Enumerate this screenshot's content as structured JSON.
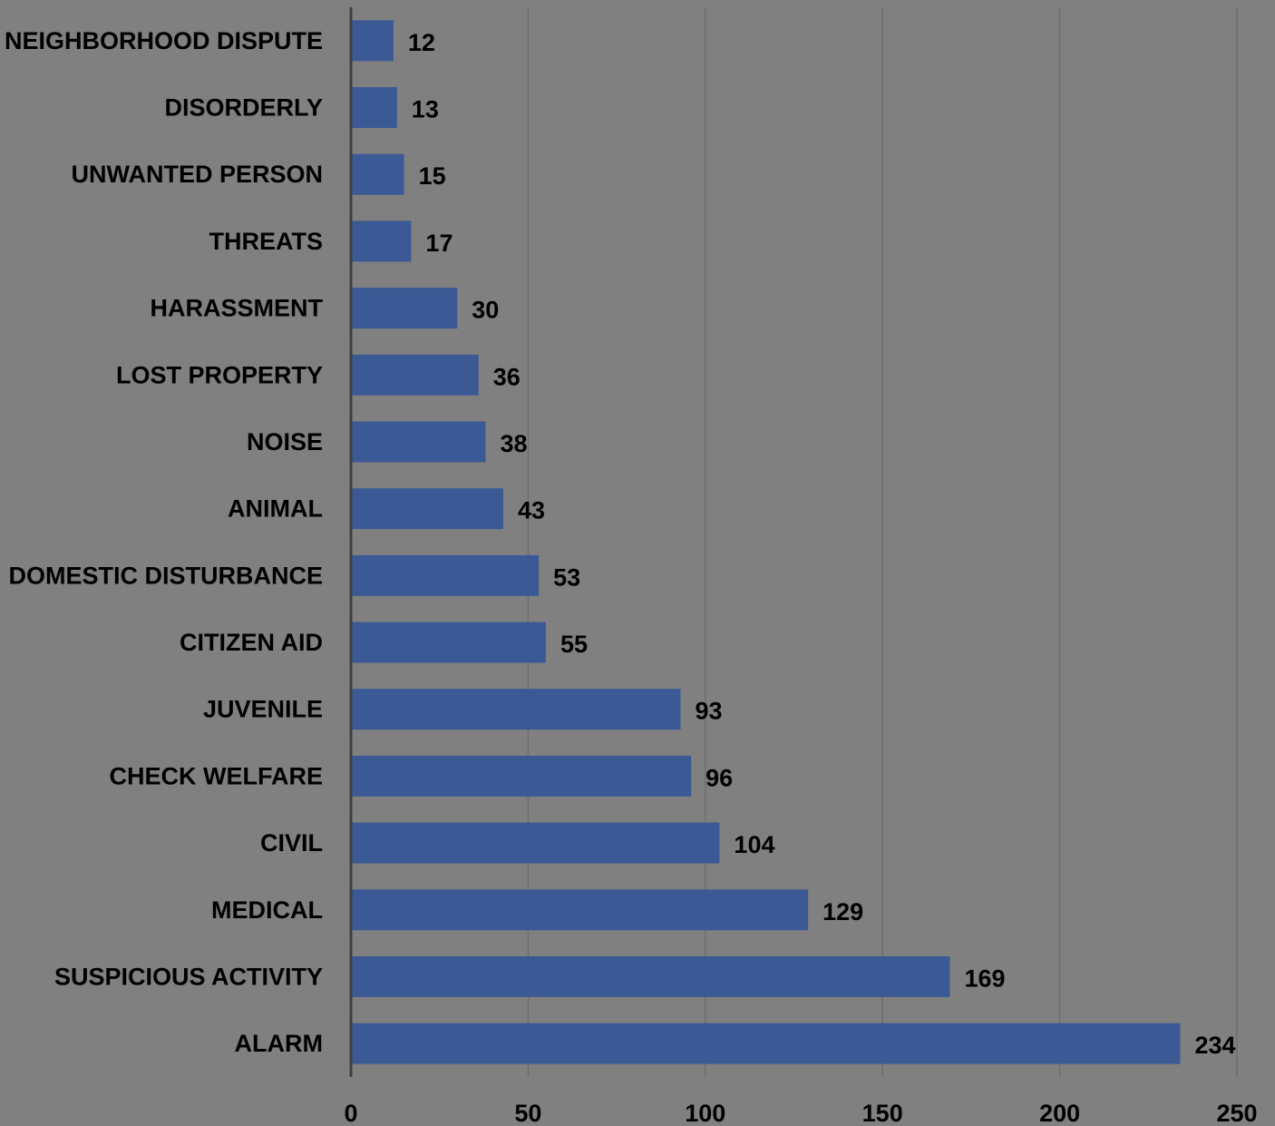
{
  "colors": {
    "background": "#808080",
    "bar": "#3B5A95",
    "gridline": "#6E6E6E",
    "axis": "#404040",
    "text": "#000000"
  },
  "chart_data": {
    "type": "bar",
    "orientation": "horizontal",
    "title": "",
    "xlabel": "",
    "ylabel": "",
    "categories": [
      "NEIGHBORHOOD DISPUTE",
      "DISORDERLY",
      "UNWANTED PERSON",
      "THREATS",
      "HARASSMENT",
      "LOST PROPERTY",
      "NOISE",
      "ANIMAL",
      "DOMESTIC DISTURBANCE",
      "CITIZEN AID",
      "JUVENILE",
      "CHECK WELFARE",
      "CIVIL",
      "MEDICAL",
      "SUSPICIOUS ACTIVITY",
      "ALARM"
    ],
    "values": [
      12,
      13,
      15,
      17,
      30,
      36,
      38,
      43,
      53,
      55,
      93,
      96,
      104,
      129,
      169,
      234
    ],
    "xlim": [
      0,
      250
    ],
    "xticks": [
      0,
      50,
      100,
      150,
      200,
      250
    ],
    "grid": true,
    "data_labels": true,
    "legend": "none"
  }
}
